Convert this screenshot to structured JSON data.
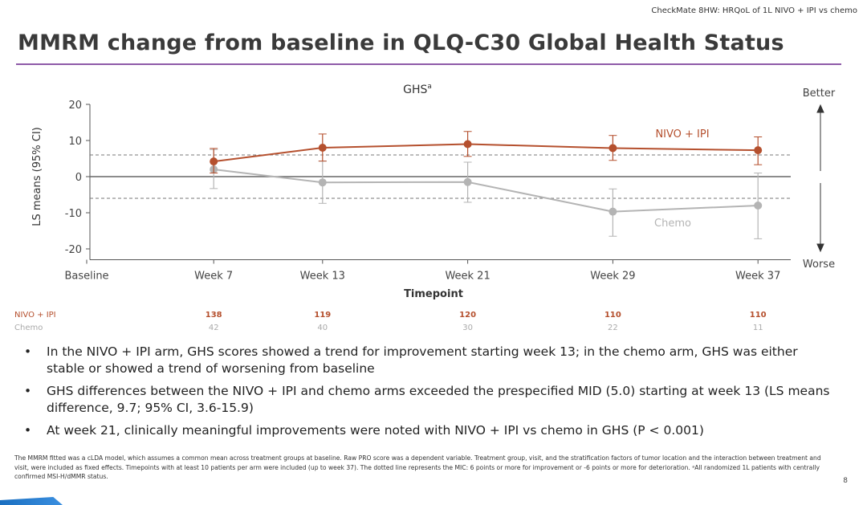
{
  "header_note": "CheckMate 8HW: HRQoL of 1L NIVO + IPI vs chemo",
  "title": "MMRM change from baseline in QLQ-C30 Global Health Status",
  "chart_data": {
    "type": "line",
    "title": "GHS",
    "title_superscript": "a",
    "xlabel": "Timepoint",
    "ylabel": "LS means (95% CI)",
    "ylim": [
      -23,
      20
    ],
    "yticks": [
      20,
      10,
      0,
      -10,
      -20
    ],
    "x_weeks": [
      0,
      7,
      13,
      21,
      29,
      37
    ],
    "xtick_labels": [
      "Baseline",
      "Week 7",
      "Week 13",
      "Week 21",
      "Week 29",
      "Week 37"
    ],
    "mid_lines": [
      6,
      -6
    ],
    "direction_labels": {
      "up": "Better",
      "down": "Worse"
    },
    "series": [
      {
        "name": "NIVO + IPI",
        "color": "#b5502e",
        "x": [
          7,
          13,
          21,
          29,
          37
        ],
        "values": [
          4.2,
          8.0,
          9.0,
          7.9,
          7.3
        ],
        "ci_low": [
          1.0,
          4.3,
          5.6,
          4.5,
          3.3
        ],
        "ci_high": [
          7.8,
          11.8,
          12.5,
          11.4,
          11.0
        ],
        "n": [
          "138",
          "119",
          "120",
          "110",
          "110"
        ]
      },
      {
        "name": "Chemo",
        "color": "#b4b4b4",
        "x": [
          7,
          13,
          21,
          29,
          37
        ],
        "values": [
          2.0,
          -1.6,
          -1.5,
          -9.7,
          -8.0
        ],
        "ci_low": [
          -3.3,
          -7.4,
          -7.1,
          -16.5,
          -17.2
        ],
        "ci_high": [
          7.5,
          4.3,
          4.0,
          -3.4,
          1.0
        ],
        "n": [
          "42",
          "40",
          "30",
          "22",
          "11"
        ]
      }
    ]
  },
  "bullets": [
    "In the NIVO + IPI arm, GHS scores showed a trend for improvement starting week 13; in the chemo arm, GHS was either stable or showed a trend of worsening from baseline",
    "GHS differences between the NIVO + IPI and chemo arms exceeded the prespecified MID (5.0) starting at week 13 (LS means difference, 9.7; 95% CI, 3.6-15.9)",
    "At week 21, clinically meaningful improvements were noted with NIVO + IPI vs chemo in GHS (P < 0.001)"
  ],
  "bullet_marker": "•",
  "footnote": "The MMRM fitted was a cLDA model, which assumes a common mean across treatment groups at baseline. Raw PRO score was a dependent variable. Treatment group, visit, and the stratification factors of tumor location and the interaction between treatment and visit, were included as fixed effects. Timepoints with at least 10 patients per arm were included (up to week 37). The dotted line represents the MIC: 6 points or more for improvement or -6 points or more for deterioration. ᵃAll randomized 1L patients with centrally confirmed MSI-H/dMMR status.",
  "page_number": "8"
}
